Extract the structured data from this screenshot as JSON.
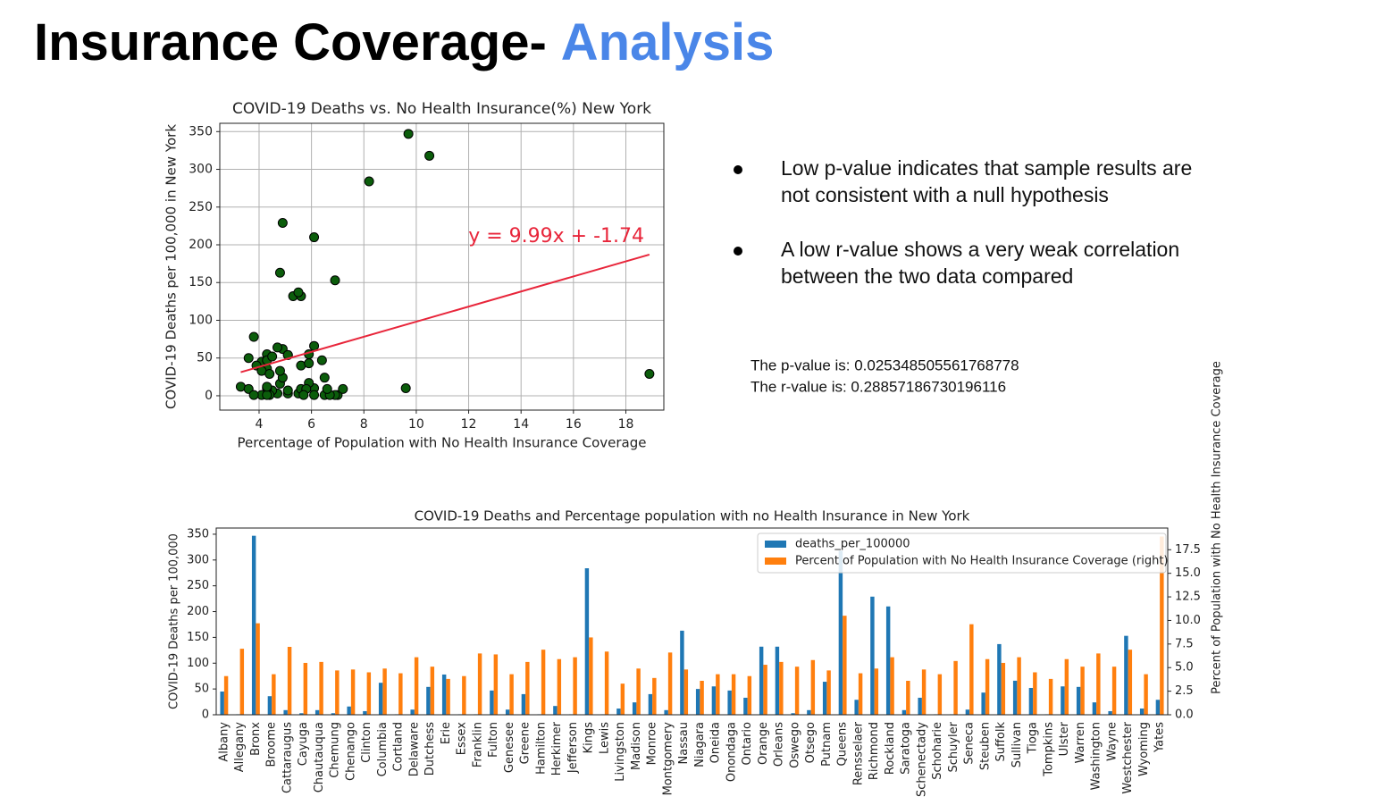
{
  "header": {
    "title": "Insurance Coverage-",
    "highlight": "Analysis"
  },
  "bullets": [
    "Low p-value indicates that sample results are",
    "not consistent with a null hypothesis",
    "A low r-value shows a very weak correlation",
    "between the two data compared"
  ],
  "stats": [
    "The p-value is: 0.025348505561768778",
    "The r-value is: 0.28857186730196116"
  ],
  "chart_data": [
    {
      "type": "scatter",
      "title": "COVID-19 Deaths vs. No Health Insurance(%) New York",
      "x_label": "Percentage of Population with No Health Insurance Coverage",
      "y_label": "COVID-19 Deaths per 100,000 in New York",
      "x": [
        4.1,
        7.0,
        9.7,
        4.3,
        7.2,
        5.5,
        5.6,
        4.7,
        4.8,
        4.5,
        4.9,
        4.4,
        6.1,
        5.1,
        3.8,
        4.1,
        6.5,
        6.4,
        4.3,
        5.6,
        6.9,
        5.9,
        6.1,
        8.2,
        6.7,
        3.3,
        4.9,
        3.9,
        6.6,
        4.8,
        3.6,
        4.3,
        4.3,
        4.1,
        5.3,
        5.6,
        5.1,
        5.8,
        4.7,
        10.5,
        4.4,
        4.9,
        6.1,
        3.6,
        4.8,
        4.3,
        5.7,
        9.6,
        5.9,
        5.5,
        6.1,
        4.5,
        3.8,
        5.9,
        5.1,
        6.5,
        5.1,
        6.9,
        4.3,
        18.9
      ],
      "values": [
        45,
        1,
        347,
        36,
        9,
        3,
        9,
        3,
        16,
        7,
        62,
        1,
        10,
        54,
        78,
        1,
        1,
        47,
        10,
        40,
        1,
        17,
        1,
        284,
        1,
        12,
        24,
        40,
        9,
        163,
        50,
        55,
        47,
        33,
        132,
        132,
        3,
        9,
        64,
        318,
        29,
        229,
        210,
        9,
        33,
        1,
        1,
        10,
        43,
        137,
        66,
        52,
        1,
        55,
        54,
        24,
        7,
        153,
        12,
        29
      ],
      "color": "#0b5d0b",
      "fit": {
        "label": "y = 9.99x + -1.74",
        "slope": 9.99,
        "intercept": -1.74,
        "color": "#e8253a"
      },
      "xlim": [
        2.5,
        19.45
      ],
      "ylim": [
        -19,
        361
      ],
      "xticks": [
        4,
        6,
        8,
        10,
        12,
        14,
        16,
        18
      ],
      "yticks": [
        0,
        50,
        100,
        150,
        200,
        250,
        300,
        350
      ],
      "grid": true
    },
    {
      "type": "bar",
      "title": "COVID-19 Deaths and Percentage population with no Health Insurance in New York",
      "y_label": "COVID-19 Deaths per 100,000",
      "y2_label": "Percent of Population with No Health Insurance Coverage",
      "categories": [
        "Albany",
        "Allegany",
        "Bronx",
        "Broome",
        "Cattaraugus",
        "Cayuga",
        "Chautauqua",
        "Chemung",
        "Chenango",
        "Clinton",
        "Columbia",
        "Cortland",
        "Delaware",
        "Dutchess",
        "Erie",
        "Essex",
        "Franklin",
        "Fulton",
        "Genesee",
        "Greene",
        "Hamilton",
        "Herkimer",
        "Jefferson",
        "Kings",
        "Lewis",
        "Livingston",
        "Madison",
        "Monroe",
        "Montgomery",
        "Nassau",
        "Niagara",
        "Oneida",
        "Onondaga",
        "Ontario",
        "Orange",
        "Orleans",
        "Oswego",
        "Otsego",
        "Putnam",
        "Queens",
        "Rensselaer",
        "Richmond",
        "Rockland",
        "Saratoga",
        "Schenectady",
        "Schoharie",
        "Schuyler",
        "Seneca",
        "Steuben",
        "Suffolk",
        "Sullivan",
        "Tioga",
        "Tompkins",
        "Ulster",
        "Warren",
        "Washington",
        "Wayne",
        "Westchester",
        "Wyoming",
        "Yates"
      ],
      "series": [
        {
          "name": "deaths_per_100000",
          "color": "#1f77b4",
          "values": [
            45,
            1,
            347,
            36,
            9,
            3,
            9,
            3,
            16,
            7,
            62,
            1,
            10,
            54,
            78,
            1,
            1,
            47,
            10,
            40,
            1,
            17,
            1,
            284,
            1,
            12,
            24,
            40,
            9,
            163,
            50,
            55,
            47,
            33,
            132,
            132,
            3,
            9,
            64,
            318,
            29,
            229,
            210,
            9,
            33,
            1,
            1,
            10,
            43,
            137,
            66,
            52,
            1,
            55,
            54,
            24,
            7,
            153,
            12,
            29
          ]
        },
        {
          "name": "Percent of Population with No Health Insurance Coverage (right)",
          "color": "#ff7f0e",
          "axis": "y2",
          "values": [
            4.1,
            7.0,
            9.7,
            4.3,
            7.2,
            5.5,
            5.6,
            4.7,
            4.8,
            4.5,
            4.9,
            4.4,
            6.1,
            5.1,
            3.8,
            4.1,
            6.5,
            6.4,
            4.3,
            5.6,
            6.9,
            5.9,
            6.1,
            8.2,
            6.7,
            3.3,
            4.9,
            3.9,
            6.6,
            4.8,
            3.6,
            4.3,
            4.3,
            4.1,
            5.3,
            5.6,
            5.1,
            5.8,
            4.7,
            10.5,
            4.4,
            4.9,
            6.1,
            3.6,
            4.8,
            4.3,
            5.7,
            9.6,
            5.9,
            5.5,
            6.1,
            4.5,
            3.8,
            5.9,
            5.1,
            6.5,
            5.1,
            6.9,
            4.3,
            18.9
          ]
        }
      ],
      "ylim": [
        0,
        362
      ],
      "yticks": [
        0,
        50,
        100,
        150,
        200,
        250,
        300,
        350
      ],
      "y2lim": [
        0,
        19.8
      ],
      "y2ticks": [
        {
          "value": 0,
          "label": "0.0"
        },
        2.5,
        {
          "value": 5,
          "label": "5.0"
        },
        7.5,
        {
          "value": 10,
          "label": "10.0"
        },
        12.5,
        {
          "value": 15,
          "label": "15.0"
        },
        17.5
      ],
      "legend": "upper right",
      "grid": false
    }
  ]
}
